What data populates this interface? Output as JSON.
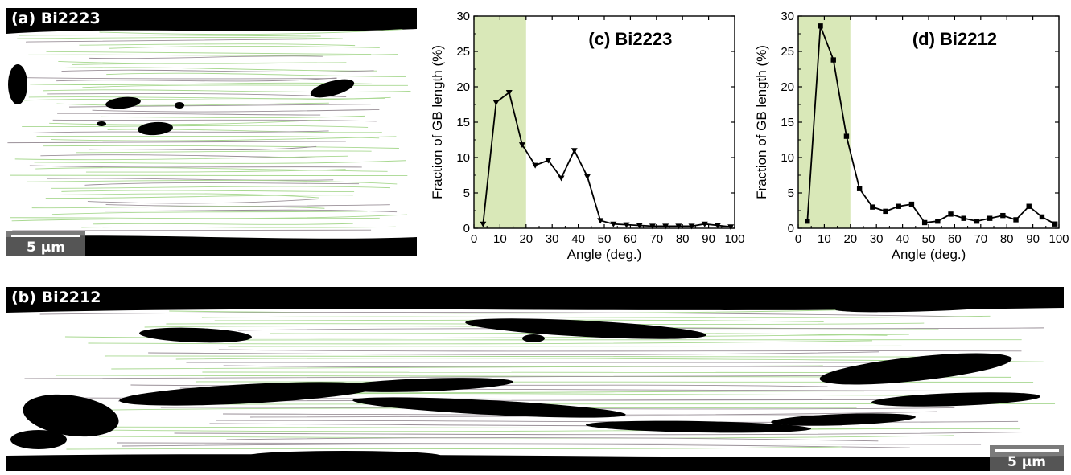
{
  "panels": {
    "a": {
      "label": "(a) Bi2223",
      "scale_label": "5 μm"
    },
    "b": {
      "label": "(b) Bi2212",
      "scale_label": "5 μm"
    }
  },
  "colors": {
    "highlight": "#d9e8b8",
    "line": "#000000",
    "grain_boundary": "#a8d890",
    "pore": "#000000",
    "grain": "#ffffff"
  },
  "chart_data": [
    {
      "type": "line",
      "title": "(c) Bi2223",
      "xlabel": "Angle (deg.)",
      "ylabel": "Fraction of GB length (%)",
      "xlim": [
        0,
        100
      ],
      "ylim": [
        0,
        30
      ],
      "xticks": [
        0,
        10,
        20,
        30,
        40,
        50,
        60,
        70,
        80,
        90,
        100
      ],
      "yticks": [
        0,
        5,
        10,
        15,
        20,
        25,
        30
      ],
      "marker": "triangle-down",
      "highlight_range": [
        0,
        20
      ],
      "grid": false,
      "series": [
        {
          "x": [
            3.5,
            8.5,
            13.5,
            18.5,
            23.5,
            28.5,
            33.5,
            38.5,
            43.5,
            48.5,
            53.5,
            58.5,
            63.5,
            68.5,
            73.5,
            78.5,
            83.5,
            88.5,
            93.5,
            98.5
          ],
          "y": [
            0.6,
            17.8,
            19.2,
            11.8,
            8.9,
            9.6,
            7.1,
            11.0,
            7.3,
            1.1,
            0.6,
            0.5,
            0.4,
            0.3,
            0.3,
            0.3,
            0.3,
            0.6,
            0.4,
            0.2
          ]
        }
      ]
    },
    {
      "type": "line",
      "title": "(d) Bi2212",
      "xlabel": "Angle (deg.)",
      "ylabel": "Fraction of GB length (%)",
      "xlim": [
        0,
        100
      ],
      "ylim": [
        0,
        30
      ],
      "xticks": [
        0,
        10,
        20,
        30,
        40,
        50,
        60,
        70,
        80,
        90,
        100
      ],
      "yticks": [
        0,
        5,
        10,
        15,
        20,
        25,
        30
      ],
      "marker": "square",
      "highlight_range": [
        0,
        20
      ],
      "grid": false,
      "series": [
        {
          "x": [
            3.5,
            8.5,
            13.5,
            18.5,
            23.5,
            28.5,
            33.5,
            38.5,
            43.5,
            48.5,
            53.5,
            58.5,
            63.5,
            68.5,
            73.5,
            78.5,
            83.5,
            88.5,
            93.5,
            98.5
          ],
          "y": [
            1.0,
            28.6,
            23.8,
            13.0,
            5.6,
            3.0,
            2.4,
            3.1,
            3.4,
            0.8,
            1.0,
            2.0,
            1.4,
            1.0,
            1.4,
            1.8,
            1.2,
            3.1,
            1.6,
            0.6
          ]
        }
      ]
    }
  ]
}
